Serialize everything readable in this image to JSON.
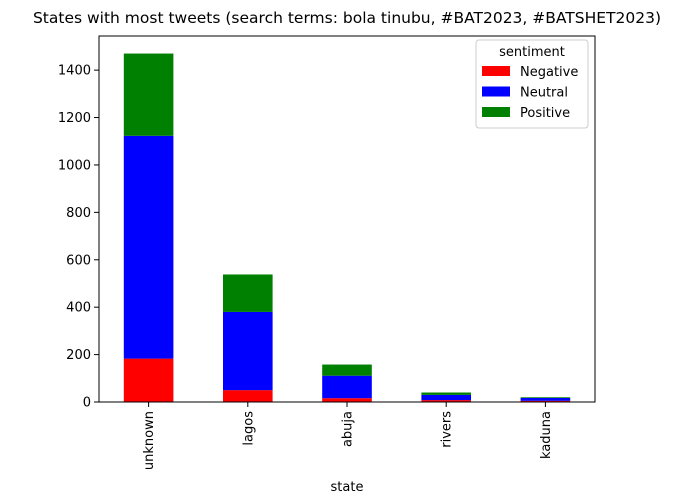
{
  "chart_data": {
    "type": "bar",
    "stacked": true,
    "title": "States with most tweets (search terms: bola tinubu, #BAT2023, #BATSHET2023)",
    "xlabel": "state",
    "ylabel": "",
    "categories": [
      "unknown",
      "lagos",
      "abuja",
      "rivers",
      "kaduna"
    ],
    "series": [
      {
        "name": "Negative",
        "color": "#ff0000",
        "values": [
          183,
          50,
          16,
          8,
          5
        ]
      },
      {
        "name": "Neutral",
        "color": "#0000ff",
        "values": [
          940,
          330,
          95,
          22,
          12
        ]
      },
      {
        "name": "Positive",
        "color": "#008000",
        "values": [
          347,
          158,
          47,
          10,
          3
        ]
      }
    ],
    "ylim": [
      0,
      1544
    ],
    "yticks": [
      0,
      200,
      400,
      600,
      800,
      1000,
      1200,
      1400
    ],
    "grid": false,
    "legend": {
      "title": "sentiment",
      "placement": "top-right"
    }
  }
}
